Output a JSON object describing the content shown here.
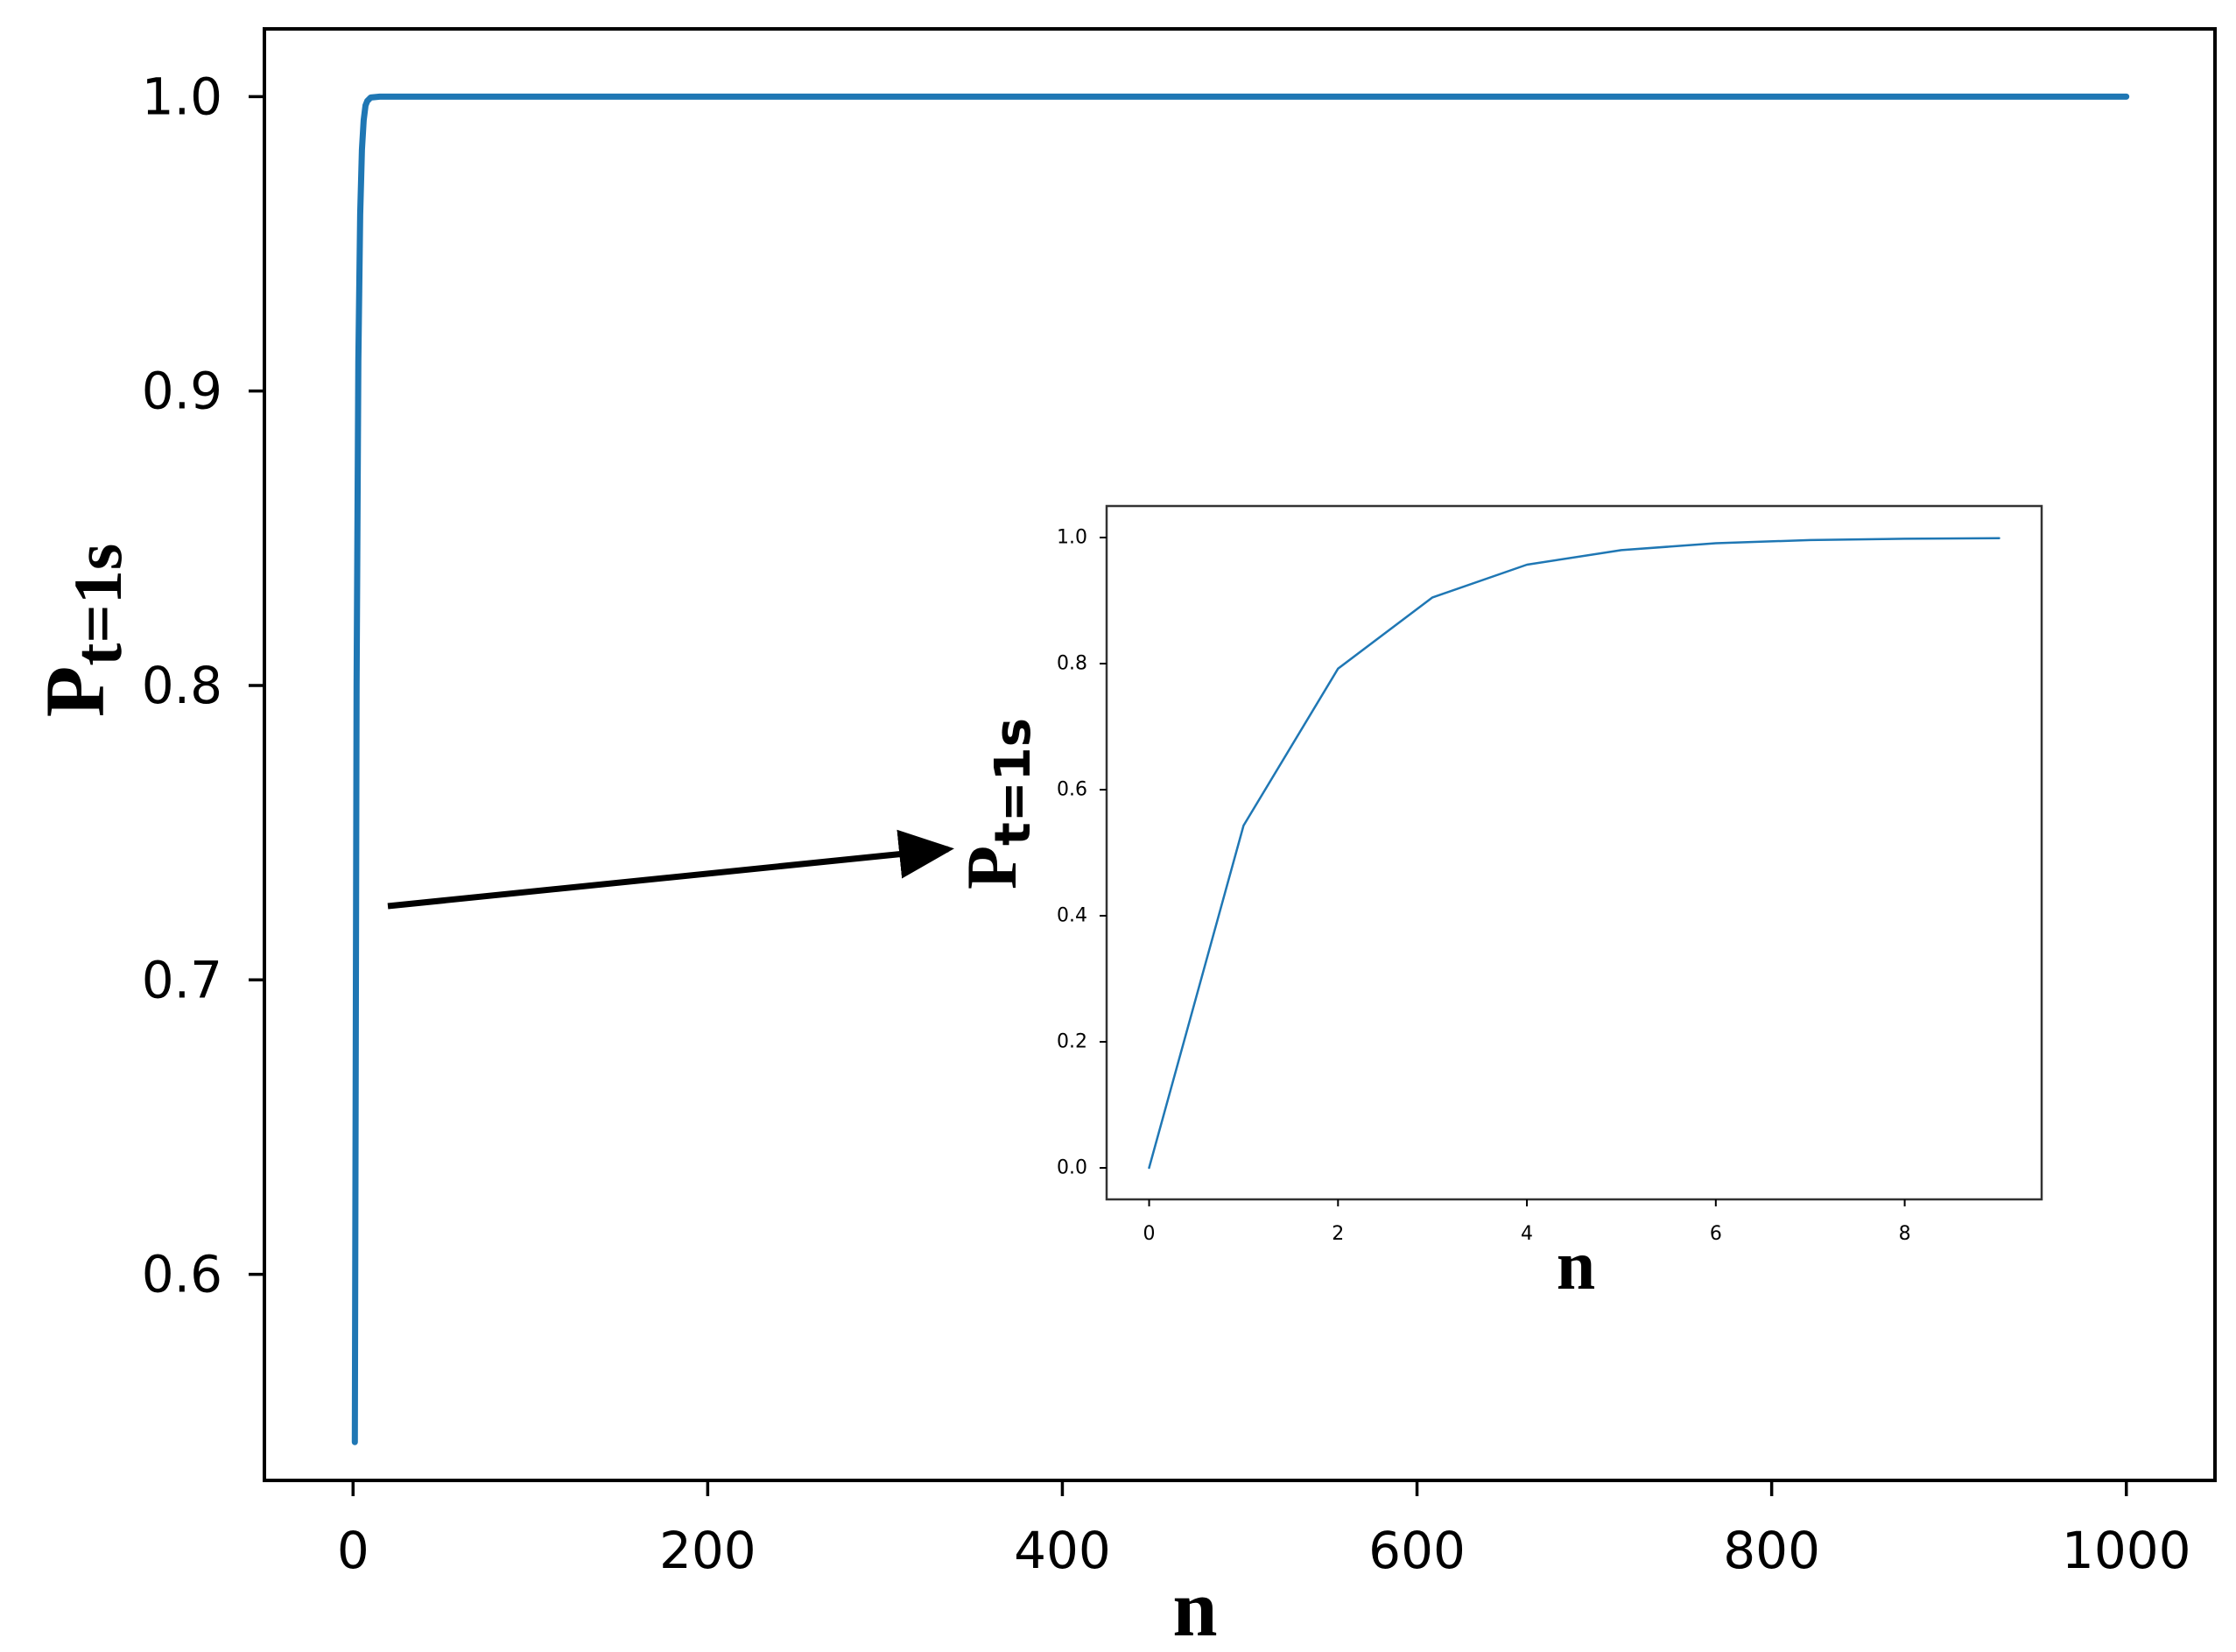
{
  "chart_data": [
    {
      "id": "main",
      "type": "line",
      "title": "",
      "xlabel": "n",
      "ylabel_main": "P",
      "ylabel_sub": "t=1s",
      "xlim": [
        -50,
        1050
      ],
      "ylim": [
        0.53,
        1.023
      ],
      "xticks": [
        0,
        200,
        400,
        600,
        800,
        1000
      ],
      "xtick_labels": [
        "0",
        "200",
        "400",
        "600",
        "800",
        "1000"
      ],
      "yticks": [
        0.6,
        0.7,
        0.8,
        0.9,
        1.0
      ],
      "ytick_labels": [
        "0.6",
        "0.7",
        "0.8",
        "0.9",
        "1.0"
      ],
      "grid": false,
      "series": [
        {
          "color": "#1f77b4",
          "x": [
            1,
            2,
            3,
            4,
            5,
            6,
            7,
            8,
            10,
            15,
            20,
            50,
            100,
            200,
            400,
            600,
            800,
            1000
          ],
          "y": [
            0.543,
            0.8,
            0.91,
            0.96,
            0.982,
            0.992,
            0.997,
            0.9985,
            0.9997,
            1.0,
            1.0,
            1.0,
            1.0,
            1.0,
            1.0,
            1.0,
            1.0,
            1.0
          ]
        }
      ]
    },
    {
      "id": "inset",
      "type": "line",
      "title": "",
      "xlabel": "n",
      "ylabel_main": "P",
      "ylabel_sub": "t=1s",
      "xlim": [
        -0.45,
        9.45
      ],
      "ylim": [
        -0.05,
        1.05
      ],
      "xticks": [
        0,
        2,
        4,
        6,
        8
      ],
      "xtick_labels": [
        "0",
        "2",
        "4",
        "6",
        "8"
      ],
      "yticks": [
        0.0,
        0.2,
        0.4,
        0.6,
        0.8,
        1.0
      ],
      "ytick_labels": [
        "0.0",
        "0.2",
        "0.4",
        "0.6",
        "0.8",
        "1.0"
      ],
      "grid": false,
      "series": [
        {
          "color": "#1f77b4",
          "x": [
            0,
            1,
            2,
            3,
            4,
            5,
            6,
            7,
            8,
            9
          ],
          "y": [
            0.0,
            0.543,
            0.792,
            0.905,
            0.957,
            0.98,
            0.991,
            0.996,
            0.998,
            0.999
          ]
        }
      ]
    }
  ]
}
